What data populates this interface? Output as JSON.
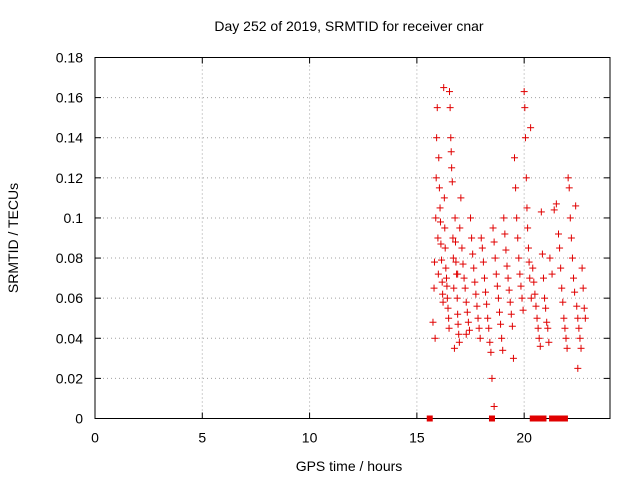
{
  "chart_data": {
    "type": "scatter",
    "title": "Day 252 of 2019, SRMTID for receiver cnar",
    "xlabel": "GPS time / hours",
    "ylabel": "SRMTID / TECUs",
    "xlim": [
      0,
      24
    ],
    "ylim": [
      0,
      0.18
    ],
    "x_ticks": [
      0,
      5,
      10,
      15,
      20
    ],
    "x_tick_labels": [
      "0",
      "5",
      "10",
      "15",
      "20"
    ],
    "y_ticks": [
      0,
      0.02,
      0.04,
      0.06,
      0.08,
      0.1,
      0.12,
      0.14,
      0.16,
      0.18
    ],
    "y_tick_labels": [
      "0",
      "0.02",
      "0.04",
      "0.06",
      "0.08",
      "0.1",
      "0.12",
      "0.14",
      "0.16",
      "0.18"
    ],
    "grid": true,
    "marker": "+",
    "color": "#e00000",
    "series": [
      {
        "name": "SRMTID",
        "points": [
          [
            15.75,
            0.048
          ],
          [
            15.8,
            0.065
          ],
          [
            15.82,
            0.078
          ],
          [
            15.85,
            0.04
          ],
          [
            15.88,
            0.1
          ],
          [
            15.9,
            0.12
          ],
          [
            15.92,
            0.14
          ],
          [
            15.95,
            0.155
          ],
          [
            15.98,
            0.09
          ],
          [
            16.0,
            0.072
          ],
          [
            16.02,
            0.13
          ],
          [
            16.05,
            0.115
          ],
          [
            16.08,
            0.105
          ],
          [
            16.1,
            0.098
          ],
          [
            16.12,
            0.087
          ],
          [
            16.15,
            0.079
          ],
          [
            16.18,
            0.068
          ],
          [
            16.2,
            0.062
          ],
          [
            16.22,
            0.058
          ],
          [
            16.25,
            0.165
          ],
          [
            16.28,
            0.11
          ],
          [
            16.3,
            0.095
          ],
          [
            16.32,
            0.085
          ],
          [
            16.35,
            0.075
          ],
          [
            16.38,
            0.07
          ],
          [
            16.4,
            0.066
          ],
          [
            16.42,
            0.06
          ],
          [
            16.45,
            0.055
          ],
          [
            16.48,
            0.05
          ],
          [
            16.5,
            0.045
          ],
          [
            16.52,
            0.163
          ],
          [
            16.55,
            0.155
          ],
          [
            16.58,
            0.14
          ],
          [
            16.6,
            0.133
          ],
          [
            16.62,
            0.125
          ],
          [
            16.65,
            0.118
          ],
          [
            16.68,
            0.09
          ],
          [
            16.7,
            0.08
          ],
          [
            16.72,
            0.065
          ],
          [
            16.75,
            0.035
          ],
          [
            16.78,
            0.1
          ],
          [
            16.8,
            0.088
          ],
          [
            16.82,
            0.078
          ],
          [
            16.85,
            0.072
          ],
          [
            16.88,
            0.06
          ],
          [
            16.9,
            0.052
          ],
          [
            16.92,
            0.047
          ],
          [
            16.95,
            0.042
          ],
          [
            16.98,
            0.038
          ],
          [
            17.0,
            0.095
          ],
          [
            17.05,
            0.11
          ],
          [
            17.1,
            0.085
          ],
          [
            17.15,
            0.077
          ],
          [
            17.2,
            0.07
          ],
          [
            17.25,
            0.065
          ],
          [
            17.3,
            0.058
          ],
          [
            17.35,
            0.053
          ],
          [
            17.4,
            0.048
          ],
          [
            17.45,
            0.044
          ],
          [
            17.5,
            0.1
          ],
          [
            17.55,
            0.09
          ],
          [
            17.6,
            0.082
          ],
          [
            17.65,
            0.075
          ],
          [
            17.7,
            0.068
          ],
          [
            17.75,
            0.062
          ],
          [
            17.8,
            0.056
          ],
          [
            17.85,
            0.05
          ],
          [
            17.9,
            0.045
          ],
          [
            17.95,
            0.04
          ],
          [
            18.0,
            0.09
          ],
          [
            18.05,
            0.085
          ],
          [
            18.1,
            0.078
          ],
          [
            18.15,
            0.07
          ],
          [
            18.2,
            0.063
          ],
          [
            18.25,
            0.057
          ],
          [
            18.3,
            0.05
          ],
          [
            18.35,
            0.045
          ],
          [
            18.4,
            0.038
          ],
          [
            18.45,
            0.033
          ],
          [
            18.5,
            0.02
          ],
          [
            18.55,
            0.095
          ],
          [
            18.6,
            0.088
          ],
          [
            18.65,
            0.08
          ],
          [
            18.7,
            0.072
          ],
          [
            18.75,
            0.066
          ],
          [
            18.8,
            0.06
          ],
          [
            18.85,
            0.053
          ],
          [
            18.9,
            0.047
          ],
          [
            18.95,
            0.04
          ],
          [
            19.0,
            0.034
          ],
          [
            19.05,
            0.1
          ],
          [
            19.1,
            0.092
          ],
          [
            19.15,
            0.084
          ],
          [
            19.2,
            0.076
          ],
          [
            19.25,
            0.07
          ],
          [
            19.3,
            0.064
          ],
          [
            19.35,
            0.058
          ],
          [
            19.4,
            0.052
          ],
          [
            19.45,
            0.046
          ],
          [
            19.5,
            0.03
          ],
          [
            19.55,
            0.13
          ],
          [
            19.6,
            0.115
          ],
          [
            19.65,
            0.1
          ],
          [
            19.7,
            0.09
          ],
          [
            19.75,
            0.08
          ],
          [
            19.8,
            0.072
          ],
          [
            19.85,
            0.066
          ],
          [
            19.9,
            0.06
          ],
          [
            19.95,
            0.054
          ],
          [
            20.0,
            0.163
          ],
          [
            20.03,
            0.155
          ],
          [
            20.06,
            0.14
          ],
          [
            20.1,
            0.12
          ],
          [
            20.13,
            0.105
          ],
          [
            20.16,
            0.095
          ],
          [
            20.2,
            0.085
          ],
          [
            20.23,
            0.078
          ],
          [
            20.26,
            0.07
          ],
          [
            20.3,
            0.145
          ],
          [
            20.33,
            0.06
          ],
          [
            20.4,
            0.075
          ],
          [
            20.45,
            0.068
          ],
          [
            20.5,
            0.062
          ],
          [
            20.55,
            0.056
          ],
          [
            20.6,
            0.05
          ],
          [
            20.65,
            0.045
          ],
          [
            20.7,
            0.04
          ],
          [
            20.75,
            0.036
          ],
          [
            20.8,
            0.103
          ],
          [
            20.85,
            0.082
          ],
          [
            20.9,
            0.07
          ],
          [
            20.95,
            0.06
          ],
          [
            21.0,
            0.055
          ],
          [
            21.05,
            0.048
          ],
          [
            21.1,
            0.045
          ],
          [
            21.15,
            0.038
          ],
          [
            21.2,
            0.08
          ],
          [
            21.3,
            0.072
          ],
          [
            21.4,
            0.104
          ],
          [
            21.5,
            0.107
          ],
          [
            21.6,
            0.092
          ],
          [
            21.65,
            0.085
          ],
          [
            21.7,
            0.075
          ],
          [
            21.75,
            0.065
          ],
          [
            21.8,
            0.058
          ],
          [
            21.85,
            0.05
          ],
          [
            21.9,
            0.045
          ],
          [
            21.95,
            0.04
          ],
          [
            22.0,
            0.035
          ],
          [
            22.05,
            0.12
          ],
          [
            22.1,
            0.115
          ],
          [
            22.15,
            0.1
          ],
          [
            22.2,
            0.09
          ],
          [
            22.25,
            0.08
          ],
          [
            22.3,
            0.07
          ],
          [
            22.35,
            0.063
          ],
          [
            22.4,
            0.106
          ],
          [
            22.45,
            0.056
          ],
          [
            22.5,
            0.05
          ],
          [
            22.55,
            0.045
          ],
          [
            22.6,
            0.04
          ],
          [
            22.65,
            0.035
          ],
          [
            22.7,
            0.075
          ],
          [
            22.75,
            0.065
          ],
          [
            22.8,
            0.055
          ],
          [
            22.85,
            0.05
          ],
          [
            22.5,
            0.025
          ],
          [
            18.6,
            0.006
          ],
          [
            17.3,
            0.042
          ],
          [
            16.9,
            0.072
          ]
        ]
      }
    ],
    "zero_markers": [
      15.6,
      18.5,
      20.4,
      20.6,
      20.7,
      20.8,
      20.9,
      21.3,
      21.4,
      21.5,
      21.6,
      21.8,
      21.9
    ]
  }
}
